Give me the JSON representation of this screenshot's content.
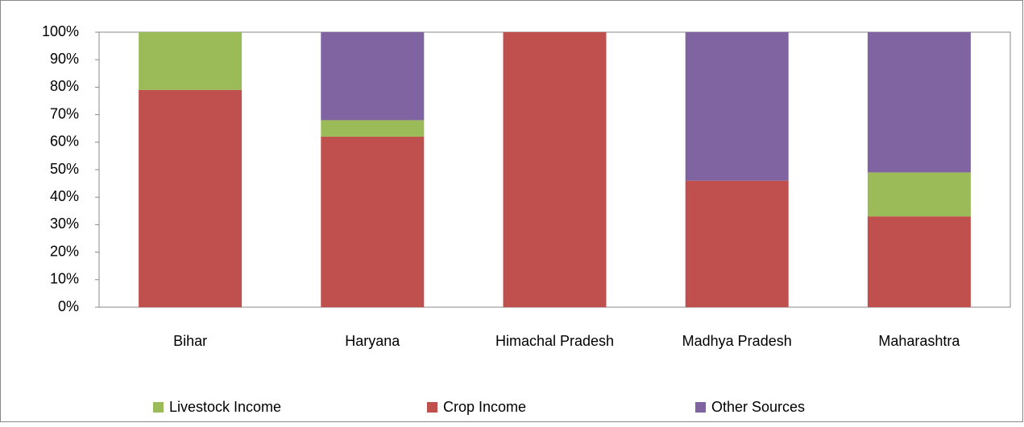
{
  "chart_data": {
    "type": "stacked_bar",
    "categories": [
      "Bihar",
      "Haryana",
      "Himachal Pradesh",
      "Madhya Pradesh",
      "Maharashtra"
    ],
    "series": [
      {
        "name": "Livestock Income",
        "color": "#9bbb59",
        "values": [
          21,
          6,
          0,
          0,
          16
        ]
      },
      {
        "name": "Crop Income",
        "color": "#c0504d",
        "values": [
          79,
          62,
          100,
          46,
          33
        ]
      },
      {
        "name": "Other Sources",
        "color": "#8064a2",
        "values": [
          0,
          32,
          0,
          54,
          51
        ]
      }
    ],
    "ylim": [
      0,
      100
    ],
    "yticks": [
      {
        "value": 0,
        "label": "0%"
      },
      {
        "value": 10,
        "label": "10%"
      },
      {
        "value": 20,
        "label": "20%"
      },
      {
        "value": 30,
        "label": "30%"
      },
      {
        "value": 40,
        "label": "40%"
      },
      {
        "value": 50,
        "label": "50%"
      },
      {
        "value": 60,
        "label": "60%"
      },
      {
        "value": 70,
        "label": "70%"
      },
      {
        "value": 80,
        "label": "80%"
      },
      {
        "value": 90,
        "label": "90%"
      },
      {
        "value": 100,
        "label": "100%"
      }
    ],
    "legend": "bottom"
  }
}
